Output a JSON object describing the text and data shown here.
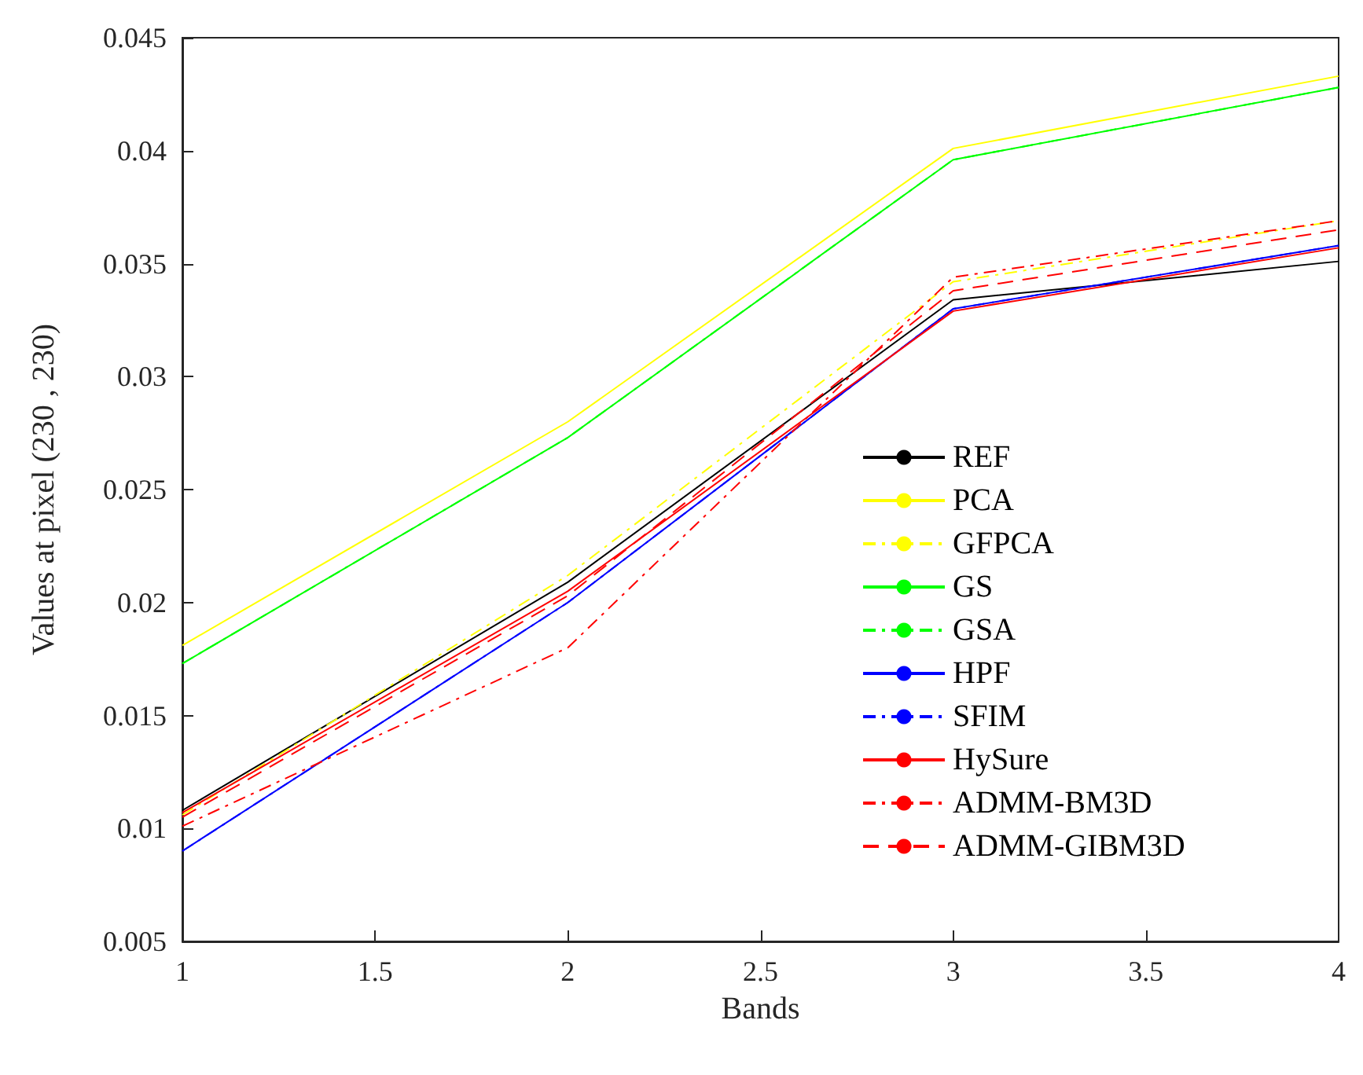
{
  "chart_data": {
    "type": "line",
    "xlabel": "Bands",
    "ylabel": "Values at pixel (230 , 230)",
    "x": [
      1,
      2,
      3,
      4
    ],
    "xlim": [
      1,
      4
    ],
    "xticks": [
      1,
      1.5,
      2,
      2.5,
      3,
      3.5,
      4
    ],
    "ylim": [
      0.005,
      0.045
    ],
    "yticks": [
      0.005,
      0.01,
      0.015,
      0.02,
      0.025,
      0.03,
      0.035,
      0.04,
      0.045
    ],
    "grid": false,
    "legend": "right",
    "marker": "none",
    "series": [
      {
        "name": "REF",
        "color": "#000000",
        "line_style": "solid",
        "values": [
          0.0108,
          0.0209,
          0.0334,
          0.0351
        ]
      },
      {
        "name": "PCA",
        "color": "#ffff00",
        "line_style": "solid",
        "values": [
          0.0181,
          0.028,
          0.0401,
          0.0433
        ]
      },
      {
        "name": "GFPCA",
        "color": "#ffff00",
        "line_style": "dashdot",
        "values": [
          0.0106,
          0.0212,
          0.0342,
          0.0369
        ]
      },
      {
        "name": "GS",
        "color": "#00ff00",
        "line_style": "solid",
        "values": [
          0.0173,
          0.0273,
          0.0396,
          0.0428
        ]
      },
      {
        "name": "GSA",
        "color": "#00ff00",
        "line_style": "dashdot",
        "values": [
          0.0173,
          0.0273,
          0.0396,
          0.0428
        ]
      },
      {
        "name": "HPF",
        "color": "#0000ff",
        "line_style": "solid",
        "values": [
          0.009,
          0.02,
          0.033,
          0.0358
        ]
      },
      {
        "name": "SFIM",
        "color": "#0000ff",
        "line_style": "dashdot",
        "values": [
          0.009,
          0.02,
          0.033,
          0.0358
        ]
      },
      {
        "name": "HySure",
        "color": "#ff0000",
        "line_style": "solid",
        "values": [
          0.0107,
          0.0205,
          0.0329,
          0.0357
        ]
      },
      {
        "name": "ADMM-BM3D",
        "color": "#ff0000",
        "line_style": "dashdot",
        "values": [
          0.0101,
          0.018,
          0.0344,
          0.0369
        ]
      },
      {
        "name": "ADMM-GIBM3D",
        "color": "#ff0000",
        "line_style": "dashed",
        "values": [
          0.0105,
          0.0203,
          0.0338,
          0.0365
        ]
      }
    ]
  }
}
